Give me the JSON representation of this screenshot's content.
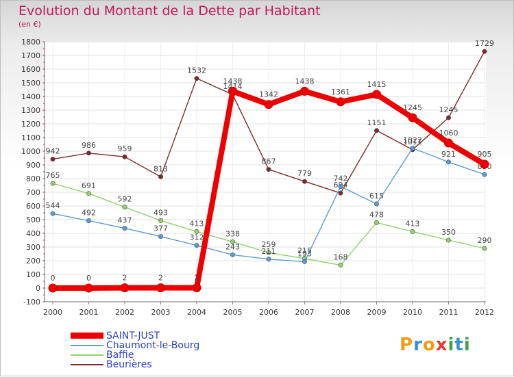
{
  "title": "Evolution du Montant de la Dette par Habitant",
  "subtitle": "(en €)",
  "logo_text": "Proxiti",
  "chart_data": {
    "type": "line",
    "title": "Evolution du Montant de la Dette par Habitant",
    "subtitle": "(en €)",
    "xlabel": "",
    "ylabel": "",
    "x": [
      "2000",
      "2001",
      "2002",
      "2003",
      "2004",
      "2005",
      "2006",
      "2007",
      "2008",
      "2009",
      "2010",
      "2011",
      "2012"
    ],
    "ylim": [
      -100,
      1800
    ],
    "yticks": [
      -100,
      0,
      100,
      200,
      300,
      400,
      500,
      600,
      700,
      800,
      900,
      1000,
      1100,
      1200,
      1300,
      1400,
      1500,
      1600,
      1700,
      1800
    ],
    "grid": true,
    "legend_position": "bottom-left",
    "series": [
      {
        "name": "Beurières",
        "color": "#7a2a2a",
        "values": [
          942,
          986,
          959,
          813,
          1532,
          1414,
          867,
          779,
          694,
          1151,
          1011,
          1245,
          1729
        ],
        "labels": [
          "942",
          "986",
          "959",
          "813",
          "1532",
          "1414",
          "867",
          "779",
          "694",
          "1151",
          "1011",
          "1245",
          "1729"
        ]
      },
      {
        "name": "Baffie",
        "color": "#8fd16a",
        "values": [
          765,
          691,
          592,
          493,
          413,
          338,
          259,
          215,
          168,
          478,
          413,
          350,
          290
        ],
        "labels": [
          "765",
          "691",
          "592",
          "493",
          "413",
          "338",
          "259",
          "215",
          "168",
          "478",
          "413",
          "350",
          "290"
        ]
      },
      {
        "name": "Chaumont-le-Bourg",
        "color": "#5b9bd5",
        "values": [
          544,
          492,
          437,
          377,
          312,
          243,
          211,
          193,
          742,
          615,
          1022,
          921,
          830
        ],
        "labels": [
          "544",
          "492",
          "437",
          "377",
          "312",
          "243",
          "211",
          "193",
          "742",
          "615",
          "1022",
          "921",
          "830"
        ]
      },
      {
        "name": "SAINT-JUST",
        "color": "#ee0000",
        "values": [
          0,
          0,
          2,
          2,
          2,
          1438,
          1342,
          1438,
          1361,
          1415,
          1245,
          1060,
          905
        ],
        "labels": [
          "0",
          "0",
          "2",
          "2",
          "2",
          "1438",
          "1342",
          "1438",
          "1361",
          "1415",
          "1245",
          "1060",
          "905"
        ]
      }
    ]
  }
}
